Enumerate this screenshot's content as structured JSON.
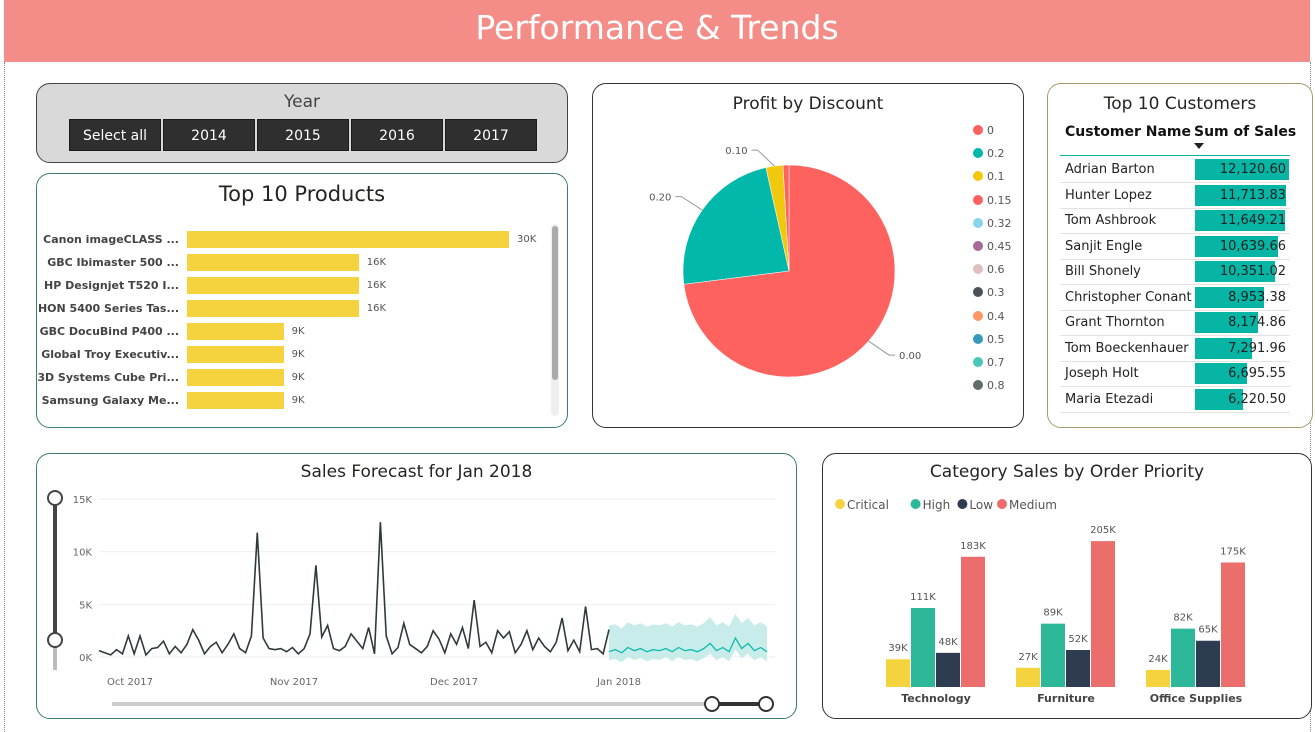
{
  "header": {
    "title": "Performance & Trends"
  },
  "year_slicer": {
    "title": "Year",
    "options": [
      "Select all",
      "2014",
      "2015",
      "2016",
      "2017"
    ]
  },
  "top_products": {
    "title": "Top 10 Products",
    "chart_data": {
      "type": "bar",
      "orientation": "horizontal",
      "categories": [
        "Canon imageCLASS ...",
        "GBC Ibimaster 500 ...",
        "HP Designjet T520 I...",
        "HON 5400 Series Tas...",
        "GBC DocuBind P400 ...",
        "Global Troy Executiv...",
        "3D Systems Cube Pri...",
        "Samsung Galaxy Me..."
      ],
      "values": [
        30000,
        16000,
        16000,
        16000,
        9000,
        9000,
        9000,
        9000
      ],
      "labels": [
        "30K",
        "16K",
        "16K",
        "16K",
        "9K",
        "9K",
        "9K",
        "9K"
      ],
      "color": "#f5d33f"
    }
  },
  "profit_by_discount": {
    "title": "Profit by Discount",
    "chart_data": {
      "type": "pie",
      "slices": [
        {
          "label": "0.00",
          "value": 0.73,
          "color": "#fd625e"
        },
        {
          "label": "0.20",
          "value": 0.235,
          "color": "#01b8aa"
        },
        {
          "label": "0.10",
          "value": 0.026,
          "color": "#f2c80f"
        },
        {
          "label": "",
          "value": 0.009,
          "color": "#fd625e"
        }
      ],
      "legend": [
        {
          "label": "0",
          "color": "#fd625e"
        },
        {
          "label": "0.2",
          "color": "#01b8aa"
        },
        {
          "label": "0.1",
          "color": "#f2c80f"
        },
        {
          "label": "0.15",
          "color": "#fd625e"
        },
        {
          "label": "0.32",
          "color": "#8ad4eb"
        },
        {
          "label": "0.45",
          "color": "#a66999"
        },
        {
          "label": "0.6",
          "color": "#dfbfbf"
        },
        {
          "label": "0.3",
          "color": "#4a5257"
        },
        {
          "label": "0.4",
          "color": "#fe9666"
        },
        {
          "label": "0.5",
          "color": "#3599b8"
        },
        {
          "label": "0.7",
          "color": "#4ac5bb"
        },
        {
          "label": "0.8",
          "color": "#5f6b6d"
        }
      ],
      "legend_position": "right"
    }
  },
  "top_customers": {
    "title": "Top 10 Customers",
    "col_name": "Customer Name",
    "col_sales": "Sum of Sales",
    "rows": [
      {
        "name": "Adrian Barton",
        "sales": 12120.6,
        "label": "12,120.60"
      },
      {
        "name": "Hunter Lopez",
        "sales": 11713.83,
        "label": "11,713.83"
      },
      {
        "name": "Tom Ashbrook",
        "sales": 11649.21,
        "label": "11,649.21"
      },
      {
        "name": "Sanjit Engle",
        "sales": 10639.66,
        "label": "10,639.66"
      },
      {
        "name": "Bill Shonely",
        "sales": 10351.02,
        "label": "10,351.02"
      },
      {
        "name": "Christopher Conant",
        "sales": 8953.38,
        "label": "8,953.38"
      },
      {
        "name": "Grant Thornton",
        "sales": 8174.86,
        "label": "8,174.86"
      },
      {
        "name": "Tom Boeckenhauer",
        "sales": 7291.96,
        "label": "7,291.96"
      },
      {
        "name": "Joseph Holt",
        "sales": 6695.55,
        "label": "6,695.55"
      },
      {
        "name": "Maria Etezadi",
        "sales": 6220.5,
        "label": "6,220.50"
      }
    ],
    "bar_color": "#06b5a3"
  },
  "sales_forecast": {
    "title": "Sales Forecast for Jan 2018",
    "chart_data": {
      "type": "line",
      "y_ticks": [
        "0K",
        "5K",
        "10K",
        "15K"
      ],
      "ylim": [
        0,
        15000
      ],
      "x_ticks": [
        "Oct 2017",
        "Nov 2017",
        "Dec 2017",
        "Jan 2018"
      ],
      "actual_values": [
        600,
        400,
        200,
        700,
        300,
        2000,
        300,
        2000,
        200,
        800,
        900,
        1500,
        300,
        1000,
        400,
        1200,
        2600,
        1600,
        300,
        1000,
        1400,
        400,
        1200,
        2200,
        800,
        400,
        2000,
        11800,
        1800,
        800,
        700,
        800,
        500,
        900,
        300,
        800,
        2200,
        8700,
        1900,
        3000,
        800,
        600,
        1000,
        2200,
        1500,
        800,
        2800,
        300,
        12800,
        2000,
        300,
        900,
        3200,
        1200,
        800,
        400,
        1000,
        2500,
        1700,
        400,
        2200,
        1200,
        2800,
        800,
        5400,
        1000,
        1400,
        400,
        2500,
        1800,
        2400,
        400,
        1200,
        2500,
        700,
        1800,
        1000,
        500,
        1400,
        3700,
        600,
        1600,
        500,
        4800,
        700,
        800,
        300,
        2600
      ],
      "forecast_values": [
        500,
        700,
        400,
        900,
        600,
        800,
        500,
        700,
        600,
        800,
        500,
        900,
        600,
        700,
        500,
        800,
        1300,
        600,
        900,
        500,
        1800,
        800,
        1300,
        600,
        900,
        500
      ],
      "forecast_lower": [
        -300,
        -200,
        -500,
        0,
        -300,
        -100,
        -400,
        -200,
        -300,
        0,
        -400,
        0,
        -300,
        -200,
        -400,
        -100,
        300,
        -300,
        0,
        -400,
        700,
        -100,
        300,
        -300,
        0,
        -400
      ],
      "forecast_upper": [
        3000,
        3100,
        2700,
        3300,
        3000,
        3200,
        2900,
        3100,
        3000,
        3200,
        2900,
        3300,
        3000,
        3100,
        2900,
        3200,
        3800,
        3000,
        3300,
        2900,
        4100,
        3200,
        3700,
        3000,
        3300,
        2900
      ],
      "line_color": "#2f3b3b",
      "forecast_color": "#01b8aa",
      "band_color": "#bde9e5"
    }
  },
  "category_sales": {
    "title": "Category Sales by Order Priority",
    "chart_data": {
      "type": "bar",
      "categories": [
        "Technology",
        "Furniture",
        "Office Supplies"
      ],
      "series": [
        {
          "name": "Critical",
          "color": "#f5d33f",
          "values": [
            39000,
            27000,
            24000
          ],
          "labels": [
            "39K",
            "27K",
            "24K"
          ]
        },
        {
          "name": "High",
          "color": "#2eb89a",
          "values": [
            111000,
            89000,
            82000
          ],
          "labels": [
            "111K",
            "89K",
            "82K"
          ]
        },
        {
          "name": "Low",
          "color": "#2e3c52",
          "values": [
            48000,
            52000,
            65000
          ],
          "labels": [
            "48K",
            "52K",
            "65K"
          ]
        },
        {
          "name": "Medium",
          "color": "#ec6e6c",
          "values": [
            183000,
            205000,
            175000
          ],
          "labels": [
            "183K",
            "205K",
            "175K"
          ]
        }
      ],
      "ylim": [
        0,
        215000
      ],
      "legend_position": "top-left"
    }
  }
}
